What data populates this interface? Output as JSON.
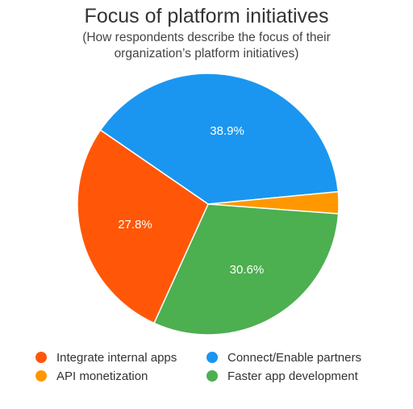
{
  "chart_data": {
    "type": "pie",
    "title": "Focus of platform initiatives",
    "subtitle": "(How respondents describe the focus of their organization’s platform initiatives)",
    "slices": [
      {
        "name": "Connect/Enable partners",
        "value": 38.9,
        "label": "38.9%",
        "color": "#1a96f0"
      },
      {
        "name": "API monetization",
        "value": 2.7,
        "label": "",
        "color": "#ff9800"
      },
      {
        "name": "Faster app development",
        "value": 30.6,
        "label": "30.6%",
        "color": "#4caf50"
      },
      {
        "name": "Integrate internal apps",
        "value": 27.8,
        "label": "27.8%",
        "color": "#ff5707"
      }
    ],
    "legend": {
      "placement": "bottom",
      "items": [
        {
          "name": "Integrate internal apps",
          "color": "#ff5707"
        },
        {
          "name": "Connect/Enable partners",
          "color": "#1a96f0"
        },
        {
          "name": "API monetization",
          "color": "#ff9800"
        },
        {
          "name": "Faster app development",
          "color": "#4caf50"
        }
      ]
    }
  }
}
